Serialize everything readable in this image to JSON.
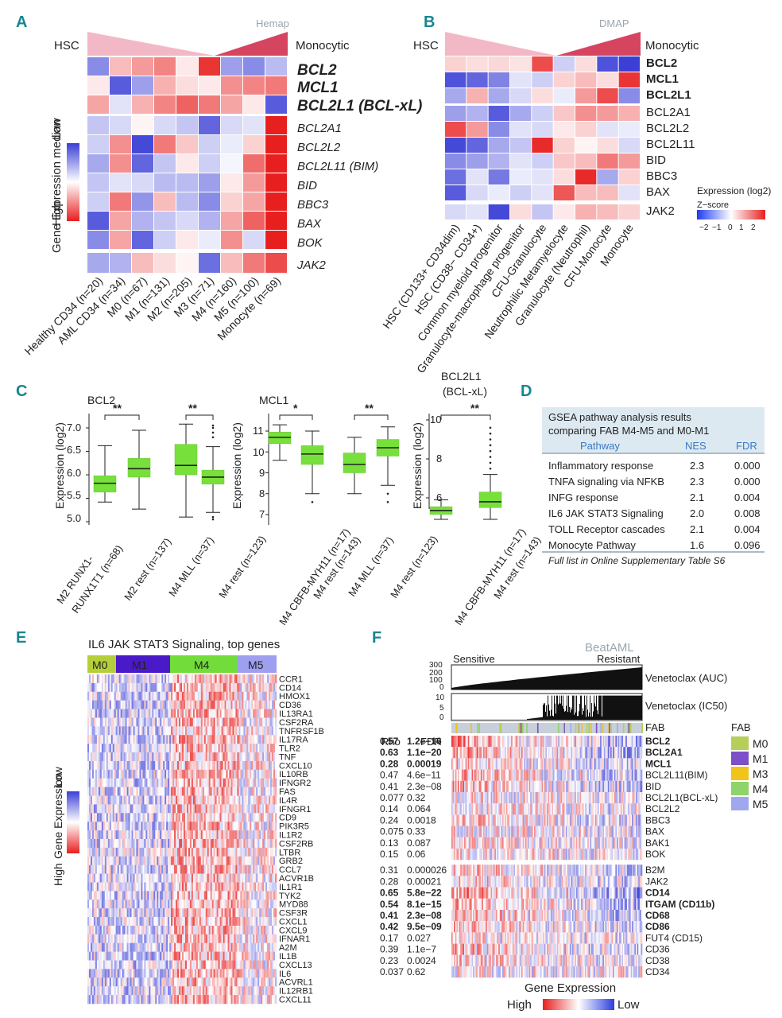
{
  "panels": {
    "A": "A",
    "B": "B",
    "C": "C",
    "D": "D",
    "E": "E",
    "F": "F"
  },
  "panel_a": {
    "source": "Hemap",
    "left_label": "HSC",
    "right_label": "Monocytic",
    "legend_title": "Gene Expression median",
    "legend_low": "Low",
    "legend_high": "High",
    "genes": [
      "BCL2",
      "MCL1",
      "BCL2L1 (BCL-xL)",
      "BCL2A1",
      "BCL2L2",
      "BCL2L11 (BIM)",
      "BID",
      "BBC3",
      "BAX",
      "BOK",
      "JAK2"
    ],
    "columns": [
      "Healthy CD34 (n=20)",
      "AML CD34 (n=34)",
      "M0 (n=67)",
      "M1 (n=131)",
      "M2 (n=205)",
      "M3 (n=71)",
      "M4 (n=160)",
      "M5 (n=100)",
      "Monocyte (n=69)"
    ]
  },
  "panel_b": {
    "source": "DMAP",
    "left_label": "HSC",
    "right_label": "Monocytic",
    "genes": [
      "BCL2",
      "MCL1",
      "BCL2L1",
      "BCL2A1",
      "BCL2L2",
      "BCL2L11",
      "BID",
      "BBC3",
      "BAX",
      "JAK2"
    ],
    "columns": [
      "HSC (CD133+ CD34dim)",
      "HSC (CD38− CD34+)",
      "Common myeloid progenitor",
      "Granulocyte-macrophage progenitor",
      "CFU-Granulocyte",
      "Neutrophilic Metamyelocyte",
      "Granulocyte (Neutrophil)",
      "CFU-Monocyte",
      "Monocyte"
    ],
    "legend_title": "Expression (log2)",
    "legend_sub": "Z−score",
    "legend_ticks": [
      "−2",
      "−1",
      "0",
      "1",
      "2"
    ]
  },
  "panel_c": {
    "ylabel": "Expression (log2)",
    "sig2": "**",
    "sig1": "*",
    "bcl2_title": "BCL2",
    "mcl1_title": "MCL1",
    "bclxl_title_1": "BCL2L1",
    "bclxl_title_2": "(BCL-xL)",
    "bcl2_yticks": [
      "7.0",
      "6.5",
      "6.0",
      "5.5",
      "5.0"
    ],
    "mcl1_yticks": [
      "11",
      "10",
      "9",
      "8",
      "7"
    ],
    "bclxl_yticks": [
      "10",
      "8",
      "6"
    ],
    "bcl2_groups": [
      "M2 RUNX1-",
      "RUNX1T1 (n=68)",
      "M2 rest (n=137)",
      "M4 MLL (n=37)",
      "M4 rest (n=123)"
    ],
    "mcl1_groups": [
      "M4 CBFB-MYH11 (n=17)",
      "M4 rest (n=143)",
      "M4 MLL (n=37)",
      "M4 rest (n=123)"
    ],
    "bclxl_groups": [
      "M4 CBFB-MYH11 (n=17)",
      "M4 rest (n=143)"
    ]
  },
  "panel_d": {
    "title_1": "GSEA pathway analysis results",
    "title_2": "comparing FAB M4-M5 and M0-M1",
    "headers": [
      "Pathway",
      "NES",
      "FDR"
    ],
    "rows": [
      {
        "pathway": "Inflammatory response",
        "nes": "2.3",
        "fdr": "0.000"
      },
      {
        "pathway": "TNFA signaling via NFKB",
        "nes": "2.3",
        "fdr": "0.000"
      },
      {
        "pathway": "INFG response",
        "nes": "2.1",
        "fdr": "0.004"
      },
      {
        "pathway": "IL6 JAK STAT3 Signaling",
        "nes": "2.0",
        "fdr": "0.008"
      },
      {
        "pathway": "TOLL Receptor cascades",
        "nes": "2.1",
        "fdr": "0.004"
      },
      {
        "pathway": "Monocyte Pathway",
        "nes": "1.6",
        "fdr": "0.096"
      }
    ],
    "footnote": "Full list in Online Supplementary Table S6"
  },
  "panel_e": {
    "title": "IL6 JAK STAT3 Signaling, top genes",
    "groups": [
      "M0",
      "M1",
      "M4",
      "M5"
    ],
    "legend_title": "Gene Expression",
    "legend_low": "Low",
    "legend_high": "High",
    "genes": [
      "CCR1",
      "CD14",
      "HMOX1",
      "CD36",
      "IL13RA1",
      "CSF2RA",
      "TNFRSF1B",
      "IL17RA",
      "TLR2",
      "TNF",
      "CXCL10",
      "IL10RB",
      "IFNGR2",
      "FAS",
      "IL4R",
      "IFNGR1",
      "CD9",
      "PIK3R5",
      "IL1R2",
      "CSF2RB",
      "LTBR",
      "GRB2",
      "CCL7",
      "ACVR1B",
      "IL1R1",
      "TYK2",
      "MYD88",
      "CSF3R",
      "CXCL1",
      "CXCL9",
      "IFNAR1",
      "A2M",
      "IL1B",
      "CXCL13",
      "IL6",
      "ACVRL1",
      "IL12RB1",
      "CXCL11"
    ]
  },
  "panel_f": {
    "source": "BeatAML",
    "sensitive": "Sensitive",
    "resistant": "Resistant",
    "auc_label": "Venetoclax (AUC)",
    "ic50_label": "Venetoclax (IC50)",
    "auc_ticks": [
      "300",
      "200",
      "100",
      "0"
    ],
    "ic50_ticks": [
      "10",
      "5",
      "0"
    ],
    "fab_label": "FAB",
    "rho_header": "Rho",
    "fdr_header": "FDR",
    "legend_title": "FAB",
    "legend_items": [
      {
        "label": "M0",
        "color": "#b5cf5a"
      },
      {
        "label": "M1",
        "color": "#7d4fc9"
      },
      {
        "label": "M3",
        "color": "#f0c419"
      },
      {
        "label": "M4",
        "color": "#8fd46a"
      },
      {
        "label": "M5",
        "color": "#9fa8ef"
      }
    ],
    "bottom_title": "Gene Expression",
    "bottom_high": "High",
    "bottom_low": "Low",
    "rows": [
      {
        "gene": "BCL2",
        "rho": "0.57",
        "fdr": "1.2e−16",
        "bold": true
      },
      {
        "gene": "BCL2A1",
        "rho": "0.63",
        "fdr": "1.1e−20",
        "bold": true
      },
      {
        "gene": "MCL1",
        "rho": "0.28",
        "fdr": "0.00019",
        "bold": true
      },
      {
        "gene": "BCL2L11(BIM)",
        "rho": "0.47",
        "fdr": "4.6e−11",
        "bold": false
      },
      {
        "gene": "BID",
        "rho": "0.41",
        "fdr": "2.3e−08",
        "bold": false
      },
      {
        "gene": "BCL2L1(BCL-xL)",
        "rho": "0.077",
        "fdr": "0.32",
        "bold": false
      },
      {
        "gene": "BCL2L2",
        "rho": "0.14",
        "fdr": "0.064",
        "bold": false
      },
      {
        "gene": "BBC3",
        "rho": "0.24",
        "fdr": "0.0018",
        "bold": false
      },
      {
        "gene": "BAX",
        "rho": "0.075",
        "fdr": "0.33",
        "bold": false
      },
      {
        "gene": "BAK1",
        "rho": "0.13",
        "fdr": "0.087",
        "bold": false
      },
      {
        "gene": "BOK",
        "rho": "0.15",
        "fdr": "0.06",
        "bold": false
      },
      {
        "gene": "B2M",
        "rho": "0.31",
        "fdr": "0.000026",
        "bold": false
      },
      {
        "gene": "JAK2",
        "rho": "0.28",
        "fdr": "0.00021",
        "bold": false
      },
      {
        "gene": "CD14",
        "rho": "0.65",
        "fdr": "5.8e−22",
        "bold": true
      },
      {
        "gene": "ITGAM (CD11b)",
        "rho": "0.54",
        "fdr": "8.1e−15",
        "bold": true
      },
      {
        "gene": "CD68",
        "rho": "0.41",
        "fdr": "2.3e−08",
        "bold": true
      },
      {
        "gene": "CD86",
        "rho": "0.42",
        "fdr": "9.5e−09",
        "bold": true
      },
      {
        "gene": "FUT4 (CD15)",
        "rho": "0.17",
        "fdr": "0.027",
        "bold": false
      },
      {
        "gene": "CD36",
        "rho": "0.39",
        "fdr": "1.1e−7",
        "bold": false
      },
      {
        "gene": "CD38",
        "rho": "0.23",
        "fdr": "0.0024",
        "bold": false
      },
      {
        "gene": "CD34",
        "rho": "0.037",
        "fdr": "0.62",
        "bold": false
      }
    ]
  },
  "chart_data": [
    {
      "type": "heatmap",
      "title": "Hemap",
      "rows": [
        "BCL2",
        "MCL1",
        "BCL2L1 (BCL-xL)",
        "BCL2A1",
        "BCL2L2",
        "BCL2L11 (BIM)",
        "BID",
        "BBC3",
        "BAX",
        "BOK",
        "JAK2"
      ],
      "columns": [
        "Healthy CD34 (n=20)",
        "AML CD34 (n=34)",
        "M0 (n=67)",
        "M1 (n=131)",
        "M2 (n=205)",
        "M3 (n=71)",
        "M4 (n=160)",
        "M5 (n=100)",
        "Monocyte (n=69)"
      ],
      "values": [
        [
          -0.6,
          0.3,
          0.45,
          0.55,
          0.1,
          0.9,
          -0.5,
          -0.6,
          -0.35
        ],
        [
          0.1,
          -0.85,
          -0.5,
          0.35,
          0.15,
          0.1,
          0.5,
          0.55,
          0.6
        ],
        [
          0.4,
          -0.15,
          0.35,
          0.55,
          0.7,
          0.6,
          0.4,
          0.1,
          -0.85
        ],
        [
          -0.3,
          -0.2,
          0.05,
          -0.2,
          -0.3,
          -0.8,
          -0.2,
          -0.15,
          1.0
        ],
        [
          -0.25,
          0.5,
          -0.95,
          0.6,
          0.25,
          -0.25,
          -0.1,
          0.2,
          1.0
        ],
        [
          -0.45,
          0.5,
          -0.8,
          -0.3,
          0.1,
          -0.25,
          -0.05,
          0.65,
          1.0
        ],
        [
          -0.3,
          -0.15,
          -0.2,
          -0.35,
          -0.35,
          -0.5,
          0.1,
          0.45,
          1.0
        ],
        [
          -0.25,
          0.6,
          -0.55,
          0.3,
          -0.35,
          -0.6,
          0.2,
          0.4,
          1.0
        ],
        [
          -0.85,
          0.4,
          -0.4,
          -0.3,
          -0.2,
          -0.4,
          0.4,
          0.7,
          1.0
        ],
        [
          -0.6,
          0.4,
          -0.8,
          -0.25,
          0.1,
          -0.1,
          0.5,
          -0.2,
          1.0
        ],
        [
          -0.45,
          -0.4,
          0.3,
          0.15,
          0.05,
          -0.75,
          0.3,
          0.6,
          0.8
        ]
      ]
    },
    {
      "type": "heatmap",
      "title": "DMAP",
      "rows": [
        "BCL2",
        "MCL1",
        "BCL2L1",
        "BCL2A1",
        "BCL2L2",
        "BCL2L11",
        "BID",
        "BBC3",
        "BAX",
        "JAK2"
      ],
      "columns": [
        "HSC (CD133+ CD34dim)",
        "HSC (CD38− CD34+)",
        "Common myeloid progenitor",
        "Granulocyte-macrophage progenitor",
        "CFU-Granulocyte",
        "Neutrophilic Metamyelocyte",
        "Granulocyte (Neutrophil)",
        "CFU-Monocyte",
        "Monocyte"
      ],
      "values": [
        [
          0.4,
          0.3,
          0.35,
          0.25,
          1.6,
          -0.5,
          0.3,
          -1.8,
          -2.0
        ],
        [
          -1.8,
          -1.6,
          -1.3,
          -0.3,
          -0.5,
          0.4,
          0.6,
          0.3,
          1.8
        ],
        [
          -0.9,
          0.7,
          -0.9,
          -0.4,
          0.3,
          -0.2,
          0.9,
          1.6,
          -1.2
        ],
        [
          -1.0,
          -0.8,
          -1.7,
          -0.9,
          -0.5,
          0.5,
          1.0,
          0.9,
          0.7
        ],
        [
          1.6,
          0.9,
          -1.2,
          -0.3,
          -0.4,
          0.2,
          0.4,
          -0.3,
          -0.2
        ],
        [
          -1.9,
          -1.6,
          -0.9,
          -0.6,
          1.9,
          0.4,
          0.1,
          0.3,
          -0.4
        ],
        [
          -1.2,
          -1.0,
          -0.8,
          -0.3,
          -0.5,
          0.5,
          0.6,
          1.2,
          0.9
        ],
        [
          -1.5,
          -0.3,
          -1.4,
          -0.2,
          -0.3,
          0.3,
          1.9,
          -0.9,
          0.4
        ],
        [
          -1.7,
          -0.4,
          -0.2,
          -0.5,
          -0.3,
          1.5,
          0.6,
          0.6,
          -0.3
        ],
        [
          -0.4,
          -0.3,
          -1.9,
          0.3,
          -0.6,
          0.2,
          0.7,
          0.6,
          0.4
        ]
      ]
    },
    {
      "type": "box",
      "title": "BCL2",
      "ylabel": "Expression (log2)",
      "ylim": [
        5.0,
        7.2
      ],
      "boxes": [
        {
          "group": "M2 RUNX1-RUNX1T1 (n=68)",
          "min": 5.42,
          "q1": 5.63,
          "median": 5.82,
          "q3": 5.98,
          "max": 6.62,
          "outliers": []
        },
        {
          "group": "M2 rest (n=137)",
          "min": 5.27,
          "q1": 5.95,
          "median": 6.13,
          "q3": 6.35,
          "max": 6.95,
          "outliers": []
        },
        {
          "group": "M4 MLL (n=37)",
          "min": 5.1,
          "q1": 6.0,
          "median": 6.2,
          "q3": 6.65,
          "max": 7.08,
          "outliers": []
        },
        {
          "group": "M4 rest (n=123)",
          "min": 5.2,
          "q1": 5.8,
          "median": 5.95,
          "q3": 6.1,
          "max": 6.6,
          "outliers": [
            6.8,
            6.9,
            7.0,
            7.05,
            5.1,
            5.05
          ]
        }
      ]
    },
    {
      "type": "box",
      "title": "MCL1",
      "ylabel": "Expression (log2)",
      "ylim": [
        6.8,
        11.5
      ],
      "boxes": [
        {
          "group": "M4 CBFB-MYH11 (n=17)",
          "min": 9.6,
          "q1": 10.4,
          "median": 10.7,
          "q3": 10.95,
          "max": 11.3,
          "outliers": []
        },
        {
          "group": "M4 rest (n=143)",
          "min": 8.0,
          "q1": 9.4,
          "median": 9.9,
          "q3": 10.3,
          "max": 11.0,
          "outliers": [
            7.6
          ]
        },
        {
          "group": "M4 MLL (n=37)",
          "min": 8.0,
          "q1": 9.0,
          "median": 9.4,
          "q3": 9.95,
          "max": 10.7,
          "outliers": []
        },
        {
          "group": "M4 rest (n=123)",
          "min": 8.4,
          "q1": 9.8,
          "median": 10.2,
          "q3": 10.6,
          "max": 11.2,
          "outliers": [
            8.0,
            7.6
          ]
        }
      ]
    },
    {
      "type": "box",
      "title": "BCL2L1 (BCL-xL)",
      "ylabel": "Expression (log2)",
      "ylim": [
        4.6,
        10.5
      ],
      "boxes": [
        {
          "group": "M4 CBFB-MYH11 (n=17)",
          "min": 4.9,
          "q1": 5.15,
          "median": 5.35,
          "q3": 5.55,
          "max": 5.9,
          "outliers": []
        },
        {
          "group": "M4 rest (n=143)",
          "min": 4.9,
          "q1": 5.5,
          "median": 5.8,
          "q3": 6.3,
          "max": 7.2,
          "outliers": [
            7.5,
            7.8,
            8.1,
            8.4,
            8.7,
            9.0,
            9.3,
            9.6
          ]
        }
      ]
    },
    {
      "type": "table",
      "title": "GSEA pathway analysis",
      "columns": [
        "Pathway",
        "NES",
        "FDR"
      ],
      "rows": [
        [
          "Inflammatory response",
          2.3,
          0.0
        ],
        [
          "TNFA signaling via NFKB",
          2.3,
          0.0
        ],
        [
          "INFG response",
          2.1,
          0.004
        ],
        [
          "IL6 JAK STAT3 Signaling",
          2.0,
          0.008
        ],
        [
          "TOLL Receptor cascades",
          2.1,
          0.004
        ],
        [
          "Monocyte Pathway",
          1.6,
          0.096
        ]
      ]
    },
    {
      "type": "line",
      "title": "Venetoclax (AUC)",
      "ylim": [
        0,
        300
      ],
      "trend": "increasing from ~20 to ~280 across sorted samples"
    },
    {
      "type": "bar",
      "title": "Venetoclax (IC50)",
      "ylim": [
        0,
        10
      ],
      "trend": "near 0 for sensitive samples, rising to 10 for resistant samples"
    }
  ]
}
